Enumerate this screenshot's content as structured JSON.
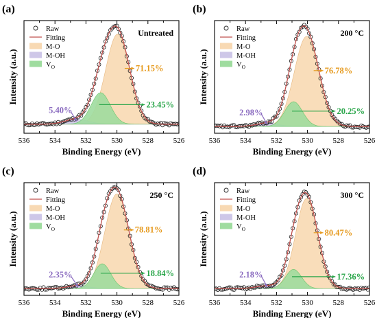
{
  "figure": {
    "colors": {
      "raw": "#222222",
      "fitting": "#c0504d",
      "mo": "#f8d9b3",
      "moh": "#cec7e8",
      "vo": "#9fdc9f",
      "mo_text": "#e69a1e",
      "moh_text": "#8b6cc0",
      "vo_text": "#2aa64a"
    }
  },
  "chart_data": [
    {
      "type": "line",
      "panel_label": "(a)",
      "condition": "Untreated",
      "xlabel": "Binding Energy (eV)",
      "ylabel": "Intensity (a.u.)",
      "xlim": [
        536,
        526
      ],
      "x_ticks": [
        "536",
        "534",
        "532",
        "530",
        "528",
        "526"
      ],
      "legend": [
        "Raw",
        "Fitting",
        "M-O",
        "M-OH",
        "VO"
      ],
      "legend_position": "top-left",
      "baseline": 0.08,
      "peaks": [
        {
          "name": "M-O",
          "center": 529.95,
          "sigma": 0.78,
          "height": 0.8,
          "percent": "71.15%"
        },
        {
          "name": "M-OH",
          "center": 532.6,
          "sigma": 0.75,
          "height": 0.045,
          "percent": "5.40%"
        },
        {
          "name": "VO",
          "center": 531.05,
          "sigma": 0.62,
          "height": 0.28,
          "percent": "23.45%"
        }
      ]
    },
    {
      "type": "line",
      "panel_label": "(b)",
      "condition": "200 °C",
      "xlabel": "Binding Energy (eV)",
      "ylabel": "Intensity (a.u.)",
      "xlim": [
        536,
        526
      ],
      "x_ticks": [
        "536",
        "534",
        "532",
        "530",
        "528",
        "526"
      ],
      "legend": [
        "Raw",
        "Fitting",
        "M-O",
        "M-OH",
        "VO"
      ],
      "legend_position": "top-left",
      "baseline": 0.06,
      "peaks": [
        {
          "name": "M-O",
          "center": 530.05,
          "sigma": 0.8,
          "height": 0.8,
          "percent": "76.78%"
        },
        {
          "name": "M-OH",
          "center": 532.6,
          "sigma": 0.7,
          "height": 0.03,
          "percent": "2.98%"
        },
        {
          "name": "VO",
          "center": 530.9,
          "sigma": 0.58,
          "height": 0.22,
          "percent": "20.25%"
        }
      ]
    },
    {
      "type": "line",
      "panel_label": "(c)",
      "condition": "250 °C",
      "xlabel": "Binding Energy (eV)",
      "ylabel": "Intensity (a.u.)",
      "xlim": [
        536,
        526
      ],
      "x_ticks": [
        "536",
        "534",
        "532",
        "530",
        "528",
        "526"
      ],
      "legend": [
        "Raw",
        "Fitting",
        "M-O",
        "M-OH",
        "VO"
      ],
      "legend_position": "top-left",
      "baseline": 0.06,
      "peaks": [
        {
          "name": "M-O",
          "center": 530.0,
          "sigma": 0.78,
          "height": 0.84,
          "percent": "78.81%"
        },
        {
          "name": "M-OH",
          "center": 532.5,
          "sigma": 0.7,
          "height": 0.025,
          "percent": "2.35%"
        },
        {
          "name": "VO",
          "center": 530.95,
          "sigma": 0.55,
          "height": 0.22,
          "percent": "18.84%"
        }
      ]
    },
    {
      "type": "line",
      "panel_label": "(d)",
      "condition": "300 °C",
      "xlabel": "Binding Energy (eV)",
      "ylabel": "Intensity (a.u.)",
      "xlim": [
        536,
        526
      ],
      "x_ticks": [
        "536",
        "534",
        "532",
        "530",
        "528",
        "526"
      ],
      "legend": [
        "Raw",
        "Fitting",
        "M-O",
        "M-OH",
        "VO"
      ],
      "legend_position": "top-left",
      "baseline": 0.06,
      "peaks": [
        {
          "name": "M-O",
          "center": 530.05,
          "sigma": 0.72,
          "height": 0.8,
          "percent": "80.47%"
        },
        {
          "name": "M-OH",
          "center": 532.6,
          "sigma": 0.7,
          "height": 0.025,
          "percent": "2.18%"
        },
        {
          "name": "VO",
          "center": 530.9,
          "sigma": 0.52,
          "height": 0.17,
          "percent": "17.36%"
        }
      ]
    }
  ]
}
